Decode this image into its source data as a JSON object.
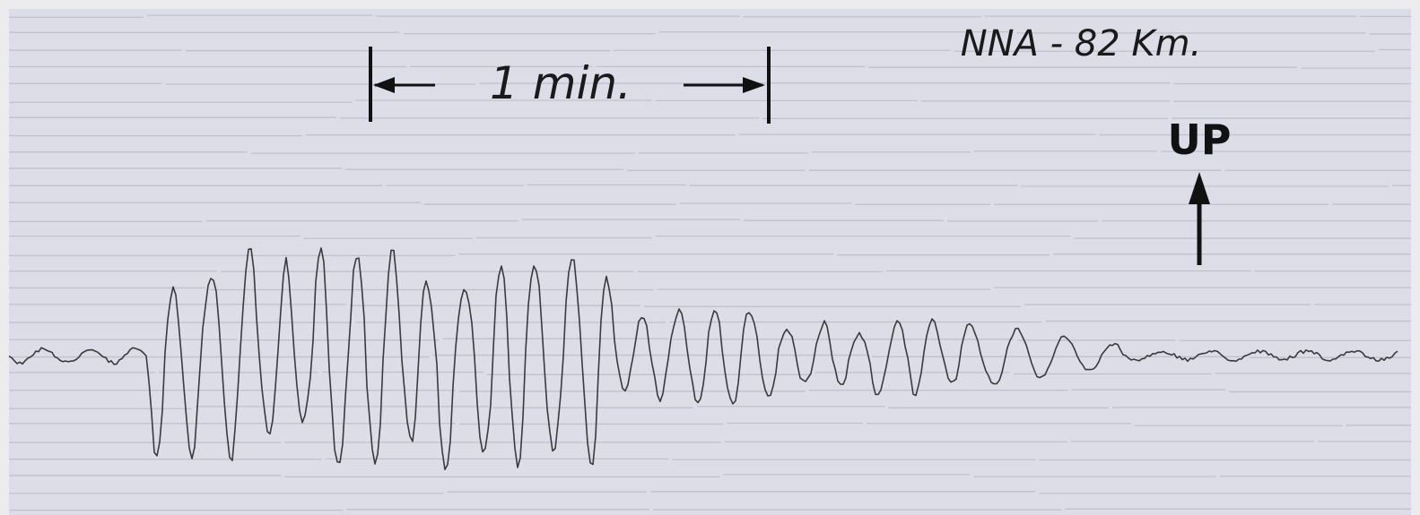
{
  "annotations": {
    "station": "NNA - 82 Km.",
    "scale": "1 min.",
    "direction": "UP"
  }
}
